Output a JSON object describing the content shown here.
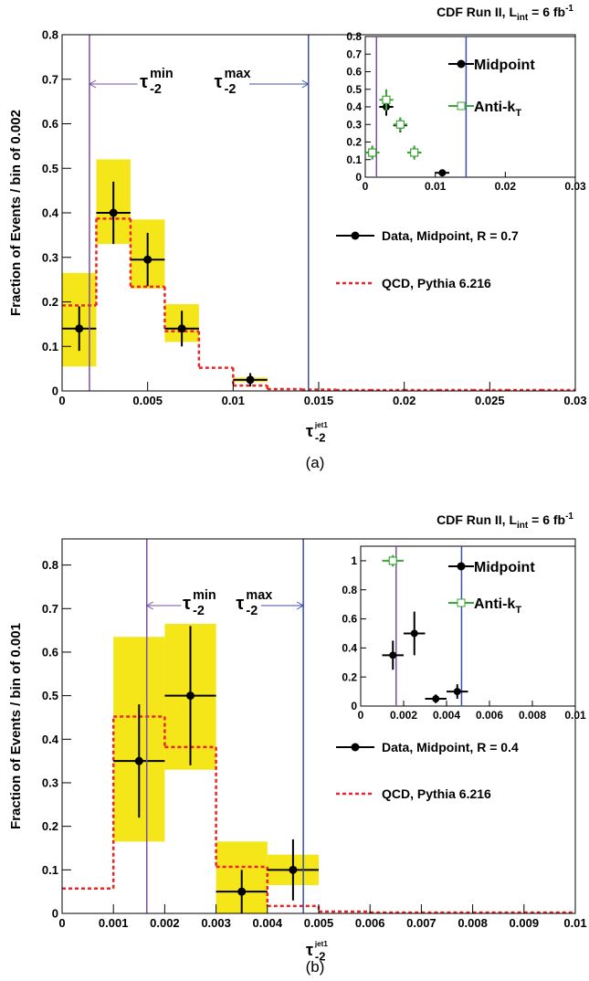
{
  "chart_data": [
    {
      "type": "histogram",
      "caption": "(a)",
      "title": {
        "text": "CDF Run II, L",
        "sub": "int",
        "rest": " = 6 fb",
        "sup": "-1"
      },
      "ylabel": "Fraction of Events / bin of 0.002",
      "xlabel": {
        "base": "τ",
        "sub": "-2",
        "sup": "jet1"
      },
      "xlim": [
        0,
        0.03
      ],
      "xticks": [
        0,
        0.005,
        0.01,
        0.015,
        0.02,
        0.025,
        0.03
      ],
      "ylim": [
        0,
        0.8
      ],
      "yticks": [
        0,
        0.1,
        0.2,
        0.3,
        0.4,
        0.5,
        0.6,
        0.7,
        0.8
      ],
      "cuts": [
        {
          "value": 0.0016,
          "color": "#7b4fa6",
          "base": "τ",
          "sub": "-2",
          "sup": "min"
        },
        {
          "value": 0.0144,
          "color": "#3c4fa8",
          "base": "τ",
          "sub": "-2",
          "sup": "max"
        }
      ],
      "series": [
        {
          "name": "Data, Midpoint, R = 0.7",
          "color": "#000000",
          "band_color": "#f5e619",
          "x": [
            0.001,
            0.003,
            0.005,
            0.007,
            0.011
          ],
          "xerr": 0.001,
          "values": [
            0.14,
            0.4,
            0.295,
            0.14,
            0.025
          ],
          "yerr": [
            0.05,
            0.07,
            0.06,
            0.04,
            0.015
          ],
          "sys_low": [
            0.055,
            0.33,
            0.23,
            0.11,
            0.02
          ],
          "sys_high": [
            0.265,
            0.52,
            0.385,
            0.195,
            0.03
          ]
        },
        {
          "name": "QCD, Pythia 6.216",
          "color": "#e8262a",
          "bins": [
            0,
            0.002,
            0.004,
            0.006,
            0.008,
            0.01,
            0.012,
            0.014,
            0.016,
            0.018,
            0.02,
            0.022,
            0.024,
            0.026,
            0.028,
            0.03
          ],
          "values": [
            0.19,
            0.385,
            0.232,
            0.132,
            0.05,
            0.01,
            0.002,
            0.001,
            0,
            0,
            0,
            0,
            0,
            0,
            0
          ]
        }
      ],
      "inset": {
        "xlim": [
          0,
          0.03
        ],
        "xticks": [
          0,
          0.01,
          0.02,
          0.03
        ],
        "ylim": [
          0,
          0.8
        ],
        "yticks": [
          0,
          0.1,
          0.2,
          0.3,
          0.4,
          0.5,
          0.6,
          0.7,
          0.8
        ],
        "series": [
          {
            "name": "Midpoint",
            "color": "#000000",
            "marker": "circle",
            "x": [
              0.001,
              0.003,
              0.005,
              0.007,
              0.011
            ],
            "xerr": 0.001,
            "values": [
              0.14,
              0.4,
              0.295,
              0.14,
              0.025
            ],
            "yerr": [
              0.03,
              0.05,
              0.04,
              0.03,
              0.01
            ]
          },
          {
            "name": "Anti-k",
            "name_sub": "T",
            "color": "#3aa635",
            "marker": "open-square",
            "x": [
              0.001,
              0.003,
              0.005,
              0.007
            ],
            "xerr": 0.001,
            "values": [
              0.14,
              0.44,
              0.3,
              0.14
            ],
            "yerr": [
              0.04,
              0.06,
              0.04,
              0.04
            ]
          }
        ]
      }
    },
    {
      "type": "histogram",
      "caption": "(b)",
      "title": {
        "text": "CDF Run II, L",
        "sub": "int",
        "rest": " = 6 fb",
        "sup": "-1"
      },
      "ylabel": "Fraction of Events / bin of 0.001",
      "xlabel": {
        "base": "τ",
        "sub": "-2",
        "sup": "jet1"
      },
      "xlim": [
        0,
        0.01
      ],
      "xticks": [
        0,
        0.001,
        0.002,
        0.003,
        0.004,
        0.005,
        0.006,
        0.007,
        0.008,
        0.009,
        0.01
      ],
      "ylim": [
        0,
        0.86
      ],
      "yticks": [
        0,
        0.1,
        0.2,
        0.3,
        0.4,
        0.5,
        0.6,
        0.7,
        0.8
      ],
      "cuts": [
        {
          "value": 0.00165,
          "color": "#7b4fa6",
          "base": "τ",
          "sub": "-2",
          "sup": "min"
        },
        {
          "value": 0.0047,
          "color": "#3c4fa8",
          "base": "τ",
          "sub": "-2",
          "sup": "max"
        }
      ],
      "series": [
        {
          "name": "Data, Midpoint, R = 0.4",
          "color": "#000000",
          "band_color": "#f5e619",
          "x": [
            0.0015,
            0.0025,
            0.0035,
            0.0045
          ],
          "xerr": 0.0005,
          "values": [
            0.35,
            0.5,
            0.05,
            0.1
          ],
          "yerr": [
            0.13,
            0.16,
            0.05,
            0.07
          ],
          "sys_low": [
            0.165,
            0.33,
            0,
            0.065
          ],
          "sys_high": [
            0.635,
            0.665,
            0.165,
            0.135
          ]
        },
        {
          "name": "QCD, Pythia 6.216",
          "color": "#e8262a",
          "bins": [
            0,
            0.001,
            0.002,
            0.003,
            0.004,
            0.005,
            0.006,
            0.007,
            0.008,
            0.009,
            0.01
          ],
          "values": [
            0.055,
            0.45,
            0.38,
            0.105,
            0.015,
            0.002,
            0,
            0,
            0,
            0
          ]
        }
      ],
      "inset": {
        "xlim": [
          0,
          0.01
        ],
        "xticks": [
          0,
          0.002,
          0.004,
          0.006,
          0.008,
          0.01
        ],
        "ylim": [
          0,
          1.1
        ],
        "yticks": [
          0,
          0.2,
          0.4,
          0.6,
          0.8,
          1
        ],
        "series": [
          {
            "name": "Midpoint",
            "color": "#000000",
            "marker": "circle",
            "x": [
              0.0015,
              0.0025,
              0.0035,
              0.0045
            ],
            "xerr": 0.0005,
            "values": [
              0.35,
              0.5,
              0.05,
              0.1
            ],
            "yerr": [
              0.1,
              0.15,
              0.03,
              0.05
            ]
          },
          {
            "name": "Anti-k",
            "name_sub": "T",
            "color": "#3aa635",
            "marker": "open-square",
            "x": [
              0.0015
            ],
            "xerr": 0.0005,
            "values": [
              1
            ],
            "yerr": [
              0.04
            ]
          }
        ]
      }
    }
  ]
}
